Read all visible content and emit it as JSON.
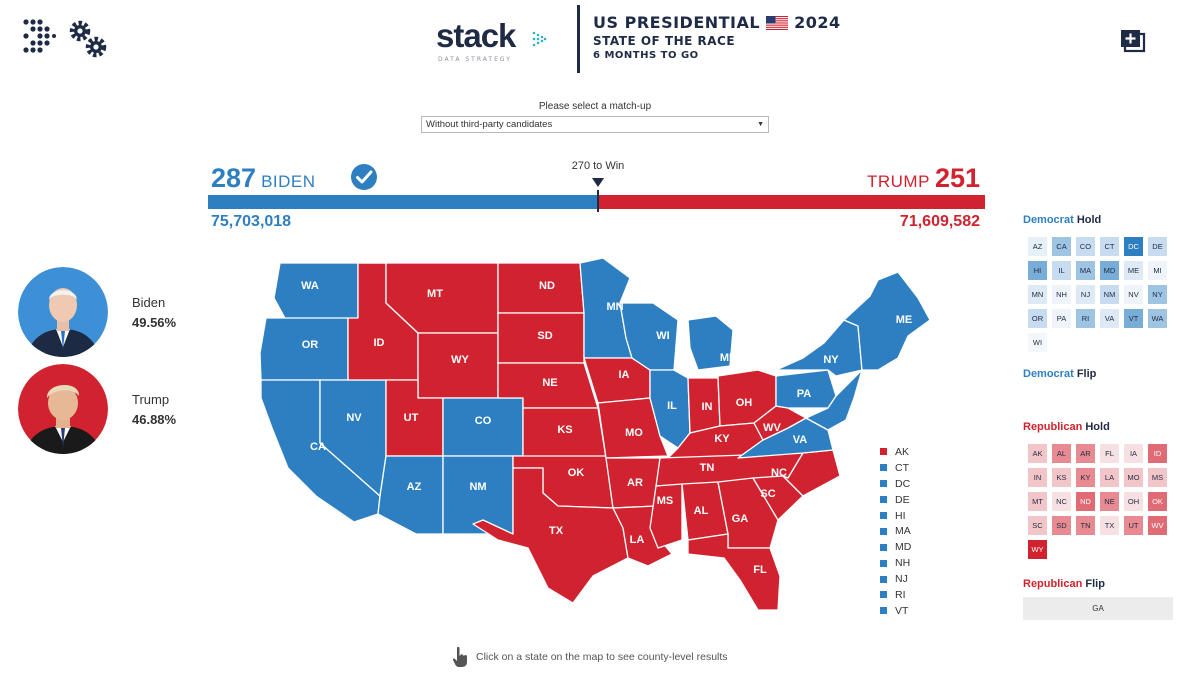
{
  "header": {
    "brand": "stack",
    "brand_sub": "DATA STRATEGY",
    "title": "US PRESIDENTIAL",
    "year": "2024",
    "subtitle1": "STATE OF THE RACE",
    "subtitle2": "6 MONTHS TO GO",
    "icons": [
      "logo-dots-icon",
      "gears-icon",
      "flag-icon",
      "expand-icon"
    ]
  },
  "matchup": {
    "label": "Please select a match-up",
    "selected": "Without third-party candidates"
  },
  "results": {
    "dem_ev": "287",
    "dem_name": "BIDEN",
    "rep_ev": "251",
    "rep_name": "TRUMP",
    "win_label": "270 to Win",
    "dem_votes": "75,703,018",
    "rep_votes": "71,609,582",
    "dem_share_of_bar": 0.5
  },
  "candidates": [
    {
      "name": "Biden",
      "pct": "49.56%"
    },
    {
      "name": "Trump",
      "pct": "46.88%"
    }
  ],
  "colors": {
    "dem": "#2e7fc1",
    "rep": "#d1232f",
    "navy": "#1f2a44"
  },
  "small_states": [
    {
      "label": "AK",
      "party": "rep"
    },
    {
      "label": "CT",
      "party": "dem"
    },
    {
      "label": "DC",
      "party": "dem"
    },
    {
      "label": "DE",
      "party": "dem"
    },
    {
      "label": "HI",
      "party": "dem"
    },
    {
      "label": "MA",
      "party": "dem"
    },
    {
      "label": "MD",
      "party": "dem"
    },
    {
      "label": "NH",
      "party": "dem"
    },
    {
      "label": "NJ",
      "party": "dem"
    },
    {
      "label": "RI",
      "party": "dem"
    },
    {
      "label": "VT",
      "party": "dem"
    }
  ],
  "panel": {
    "dem_hold": {
      "party": "Democrat",
      "status": "Hold"
    },
    "dem_flip": {
      "party": "Democrat",
      "status": "Flip"
    },
    "rep_hold": {
      "party": "Republican",
      "status": "Hold"
    },
    "rep_flip": {
      "party": "Republican",
      "status": "Flip"
    },
    "dem_hold_states": [
      {
        "s": "AZ",
        "c": "#e6f0f8"
      },
      {
        "s": "CA",
        "c": "#9dc4e3"
      },
      {
        "s": "CO",
        "c": "#c7ddef"
      },
      {
        "s": "CT",
        "c": "#c7ddef"
      },
      {
        "s": "DC",
        "c": "#2e7fc1"
      },
      {
        "s": "DE",
        "c": "#c7ddef"
      },
      {
        "s": "HI",
        "c": "#78add8"
      },
      {
        "s": "IL",
        "c": "#c7ddef"
      },
      {
        "s": "MA",
        "c": "#9dc4e3"
      },
      {
        "s": "MD",
        "c": "#78add8"
      },
      {
        "s": "ME",
        "c": "#dde9f4"
      },
      {
        "s": "MI",
        "c": "#eef4fa"
      },
      {
        "s": "MN",
        "c": "#dde9f4"
      },
      {
        "s": "NH",
        "c": "#eef4fa"
      },
      {
        "s": "NJ",
        "c": "#dde9f4"
      },
      {
        "s": "NM",
        "c": "#c7ddef"
      },
      {
        "s": "NV",
        "c": "#eef4fa"
      },
      {
        "s": "NY",
        "c": "#9dc4e3"
      },
      {
        "s": "OR",
        "c": "#c7ddef"
      },
      {
        "s": "PA",
        "c": "#eef4fa"
      },
      {
        "s": "RI",
        "c": "#9dc4e3"
      },
      {
        "s": "VA",
        "c": "#dde9f4"
      },
      {
        "s": "VT",
        "c": "#78add8"
      },
      {
        "s": "WA",
        "c": "#9dc4e3"
      },
      {
        "s": "WI",
        "c": "#f3f6fa"
      }
    ],
    "rep_hold_states": [
      {
        "s": "AK",
        "c": "#f2c6c9"
      },
      {
        "s": "AL",
        "c": "#e78a91"
      },
      {
        "s": "AR",
        "c": "#e78a91"
      },
      {
        "s": "FL",
        "c": "#f7e0e2"
      },
      {
        "s": "IA",
        "c": "#f7e0e2"
      },
      {
        "s": "ID",
        "c": "#e06b74"
      },
      {
        "s": "IN",
        "c": "#f2c6c9"
      },
      {
        "s": "KS",
        "c": "#f2c6c9"
      },
      {
        "s": "KY",
        "c": "#e78a91"
      },
      {
        "s": "LA",
        "c": "#f2c6c9"
      },
      {
        "s": "MO",
        "c": "#f2c6c9"
      },
      {
        "s": "MS",
        "c": "#f2c6c9"
      },
      {
        "s": "MT",
        "c": "#f2c6c9"
      },
      {
        "s": "NC",
        "c": "#f7e0e2"
      },
      {
        "s": "ND",
        "c": "#e06b74"
      },
      {
        "s": "NE",
        "c": "#e78a91"
      },
      {
        "s": "OH",
        "c": "#f7e0e2"
      },
      {
        "s": "OK",
        "c": "#e06b74"
      },
      {
        "s": "SC",
        "c": "#f2c6c9"
      },
      {
        "s": "SD",
        "c": "#e78a91"
      },
      {
        "s": "TN",
        "c": "#e78a91"
      },
      {
        "s": "TX",
        "c": "#f7e0e2"
      },
      {
        "s": "UT",
        "c": "#e78a91"
      },
      {
        "s": "WV",
        "c": "#e06b74"
      },
      {
        "s": "WY",
        "c": "#d1232f"
      }
    ],
    "rep_flip_states": [
      "GA"
    ]
  },
  "map_states": [
    {
      "label": "WA",
      "party": "dem"
    },
    {
      "label": "OR",
      "party": "dem"
    },
    {
      "label": "CA",
      "party": "dem"
    },
    {
      "label": "NV",
      "party": "dem"
    },
    {
      "label": "ID",
      "party": "rep"
    },
    {
      "label": "MT",
      "party": "rep"
    },
    {
      "label": "WY",
      "party": "rep"
    },
    {
      "label": "UT",
      "party": "rep"
    },
    {
      "label": "AZ",
      "party": "dem"
    },
    {
      "label": "CO",
      "party": "dem"
    },
    {
      "label": "NM",
      "party": "dem"
    },
    {
      "label": "ND",
      "party": "rep"
    },
    {
      "label": "SD",
      "party": "rep"
    },
    {
      "label": "NE",
      "party": "rep"
    },
    {
      "label": "KS",
      "party": "rep"
    },
    {
      "label": "OK",
      "party": "rep"
    },
    {
      "label": "TX",
      "party": "rep"
    },
    {
      "label": "MN",
      "party": "dem"
    },
    {
      "label": "IA",
      "party": "rep"
    },
    {
      "label": "MO",
      "party": "rep"
    },
    {
      "label": "AR",
      "party": "rep"
    },
    {
      "label": "LA",
      "party": "rep"
    },
    {
      "label": "WI",
      "party": "dem"
    },
    {
      "label": "IL",
      "party": "dem"
    },
    {
      "label": "MI",
      "party": "dem"
    },
    {
      "label": "IN",
      "party": "rep"
    },
    {
      "label": "OH",
      "party": "rep"
    },
    {
      "label": "KY",
      "party": "rep"
    },
    {
      "label": "TN",
      "party": "rep"
    },
    {
      "label": "MS",
      "party": "rep"
    },
    {
      "label": "AL",
      "party": "rep"
    },
    {
      "label": "GA",
      "party": "rep"
    },
    {
      "label": "FL",
      "party": "rep"
    },
    {
      "label": "SC",
      "party": "rep"
    },
    {
      "label": "NC",
      "party": "rep"
    },
    {
      "label": "VA",
      "party": "dem"
    },
    {
      "label": "WV",
      "party": "rep"
    },
    {
      "label": "PA",
      "party": "dem"
    },
    {
      "label": "NY",
      "party": "dem"
    },
    {
      "label": "ME",
      "party": "dem"
    }
  ],
  "hint": "Click on a state on the map to see county-level results"
}
